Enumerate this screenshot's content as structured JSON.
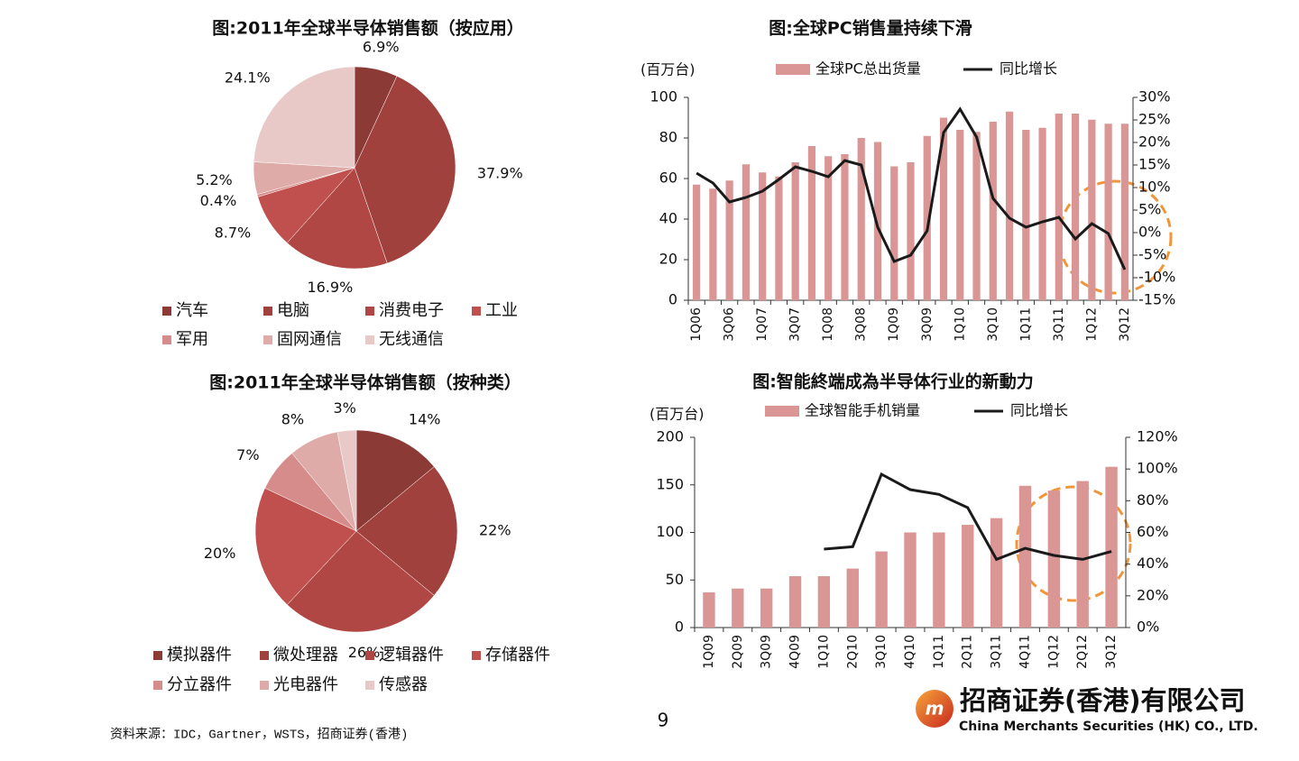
{
  "chart_data": [
    {
      "type": "pie",
      "title": "图:2011年全球半导体销售额（按应用）",
      "categories": [
        "汽车",
        "电脑",
        "消费电子",
        "工业",
        "军用",
        "固网通信",
        "无线通信"
      ],
      "values": [
        6.9,
        37.9,
        16.9,
        8.7,
        0.4,
        5.2,
        24.1
      ],
      "value_labels": [
        "6.9%",
        "37.9%",
        "16.9%",
        "8.7%",
        "0.4%",
        "5.2%",
        "24.1%"
      ],
      "colors": [
        "#8C3A36",
        "#A1413D",
        "#B04744",
        "#C0504D",
        "#D58C8A",
        "#DFABA9",
        "#E8C9C8"
      ]
    },
    {
      "type": "bar",
      "title": "图:全球PC销售量持续下滑",
      "ylabel": "(百万台)",
      "categories": [
        "1Q06",
        null,
        "3Q06",
        null,
        "1Q07",
        null,
        "3Q07",
        null,
        "1Q08",
        null,
        "3Q08",
        null,
        "1Q09",
        null,
        "3Q09",
        null,
        "1Q10",
        null,
        "3Q10",
        null,
        "1Q11",
        null,
        "3Q11",
        null,
        "1Q12",
        null,
        "3Q12"
      ],
      "series": [
        {
          "name": "全球PC总出货量",
          "type": "bar",
          "color": "#D99694",
          "values": [
            57,
            55,
            59,
            67,
            63,
            61,
            68,
            76,
            71,
            72,
            80,
            78,
            66,
            68,
            81,
            90,
            84,
            83,
            88,
            93,
            84,
            85,
            92,
            92,
            89,
            87,
            87
          ]
        },
        {
          "name": "同比增长",
          "type": "line",
          "axis": "y2",
          "color": "#1a1a1a",
          "values": [
            13.2,
            11,
            6.8,
            7.8,
            9.2,
            11.8,
            14.6,
            13.6,
            12.4,
            16,
            15,
            1.2,
            -6.4,
            -5,
            0.4,
            22.2,
            27.4,
            21.2,
            7.6,
            3.2,
            1.2,
            2.4,
            3.4,
            -1.4,
            2,
            -0.2,
            -8.2
          ]
        }
      ],
      "ylim": [
        0,
        100
      ],
      "yticks": [
        0,
        20,
        40,
        60,
        80,
        100
      ],
      "y2lim": [
        -15,
        30
      ],
      "y2ticks": [
        {
          "value": 30,
          "label": "30%"
        },
        {
          "value": 25,
          "label": "25%"
        },
        {
          "value": 20,
          "label": "20%"
        },
        {
          "value": 15,
          "label": "15%"
        },
        {
          "value": 10,
          "label": "10%"
        },
        {
          "value": 5,
          "label": "5%"
        },
        {
          "value": 0,
          "label": "0%"
        },
        {
          "value": -5,
          "label": "-5%"
        },
        {
          "value": -10,
          "label": "-10%"
        },
        {
          "value": -15,
          "label": "-15%"
        }
      ]
    },
    {
      "type": "pie",
      "title": "图:2011年全球半导体销售额（按种类）",
      "categories": [
        "模拟器件",
        "微处理器",
        "逻辑器件",
        "存储器件",
        "分立器件",
        "光电器件",
        "传感器"
      ],
      "values": [
        14,
        22,
        26,
        20,
        7,
        8,
        3
      ],
      "value_labels": [
        "14%",
        "22%",
        "26%",
        "20%",
        "7%",
        "8%",
        "3%"
      ],
      "colors": [
        "#8C3A36",
        "#A1413D",
        "#B04744",
        "#C0504D",
        "#D58C8A",
        "#DFABA9",
        "#E8C9C8"
      ]
    },
    {
      "type": "bar",
      "title": "图:智能終端成為半导体行业的新動力",
      "ylabel": "(百万台)",
      "categories": [
        "1Q09",
        "2Q09",
        "3Q09",
        "4Q09",
        "1Q10",
        "2Q10",
        "3Q10",
        "4Q10",
        "1Q11",
        "2Q11",
        "3Q11",
        "4Q11",
        "1Q12",
        "2Q12",
        "3Q12"
      ],
      "series": [
        {
          "name": "全球智能手机销量",
          "type": "bar",
          "color": "#D99694",
          "values": [
            37,
            41,
            41,
            54,
            54,
            62,
            80,
            100,
            100,
            108,
            115,
            149,
            144,
            154,
            169
          ]
        },
        {
          "name": "同比增长",
          "type": "line",
          "axis": "y2",
          "color": "#1a1a1a",
          "values": [
            null,
            null,
            null,
            null,
            49.5,
            51,
            96.7,
            87,
            84,
            75.6,
            43,
            50,
            45.5,
            43,
            48
          ]
        }
      ],
      "ylim": [
        0,
        200
      ],
      "yticks": [
        0,
        50,
        100,
        150,
        200
      ],
      "y2lim": [
        0,
        120
      ],
      "y2ticks": [
        {
          "value": 0,
          "label": "0%"
        },
        {
          "value": 20,
          "label": "20%"
        },
        {
          "value": 40,
          "label": "40%"
        },
        {
          "value": 60,
          "label": "60%"
        },
        {
          "value": 80,
          "label": "80%"
        },
        {
          "value": 100,
          "label": "100%"
        },
        {
          "value": 120,
          "label": "120%"
        }
      ]
    }
  ],
  "footer": {
    "source": "资料来源：IDC，Gartner，WSTS，招商证券(香港)",
    "page_number": "9",
    "logo": {
      "name_cn": "招商证券(香港)有限公司",
      "name_en": "China Merchants Securities (HK) CO., LTD."
    }
  }
}
